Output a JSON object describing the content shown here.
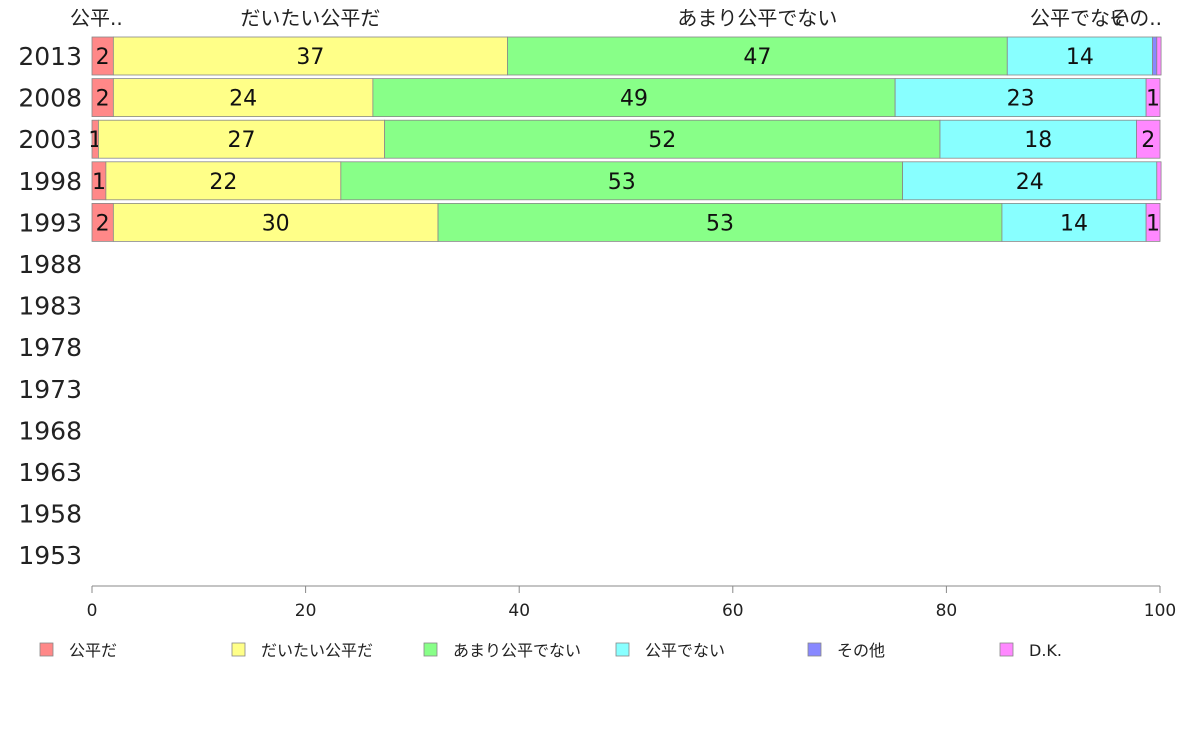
{
  "chart_data": {
    "type": "bar",
    "orientation": "horizontal",
    "stacked": true,
    "categories": [
      "2013",
      "2008",
      "2003",
      "1998",
      "1993",
      "1988",
      "1983",
      "1978",
      "1973",
      "1968",
      "1963",
      "1958",
      "1953"
    ],
    "series": [
      {
        "name": "公平だ",
        "color": "#FF8888",
        "values": [
          2,
          2,
          0.6,
          1.3,
          2,
          null,
          null,
          null,
          null,
          null,
          null,
          null,
          null
        ],
        "labels": [
          "2",
          "2",
          "1",
          "1",
          "2",
          "",
          "",
          "",
          "",
          "",
          "",
          "",
          ""
        ]
      },
      {
        "name": "だいたい公平だ",
        "color": "#FFFF88",
        "values": [
          36.9,
          24.3,
          26.8,
          22,
          30.4,
          null,
          null,
          null,
          null,
          null,
          null,
          null,
          null
        ],
        "labels": [
          "37",
          "24",
          "27",
          "22",
          "30",
          "",
          "",
          "",
          "",
          "",
          "",
          "",
          ""
        ]
      },
      {
        "name": "あまり公平でない",
        "color": "#88FF88",
        "values": [
          46.8,
          48.9,
          52,
          52.6,
          52.8,
          null,
          null,
          null,
          null,
          null,
          null,
          null,
          null
        ],
        "labels": [
          "47",
          "49",
          "52",
          "53",
          "53",
          "",
          "",
          "",
          "",
          "",
          "",
          "",
          ""
        ]
      },
      {
        "name": "公平でない",
        "color": "#88FFFF",
        "values": [
          13.6,
          23.5,
          18.4,
          23.8,
          13.5,
          null,
          null,
          null,
          null,
          null,
          null,
          null,
          null
        ],
        "labels": [
          "14",
          "23",
          "18",
          "24",
          "14",
          "",
          "",
          "",
          "",
          "",
          "",
          "",
          ""
        ]
      },
      {
        "name": "その他",
        "color": "#8888FF",
        "values": [
          0.4,
          0,
          0,
          0,
          0,
          null,
          null,
          null,
          null,
          null,
          null,
          null,
          null
        ],
        "labels": [
          "",
          "",
          "",
          "",
          "",
          "",
          "",
          "",
          "",
          "",
          "",
          "",
          ""
        ]
      },
      {
        "name": "D.K.",
        "color": "#FF88FF",
        "values": [
          0.4,
          1.3,
          2.2,
          0.4,
          1.3,
          null,
          null,
          null,
          null,
          null,
          null,
          null,
          null
        ],
        "labels": [
          "",
          "1",
          "2",
          "",
          "1",
          "",
          "",
          "",
          "",
          "",
          "",
          "",
          ""
        ]
      }
    ],
    "top_labels": [
      "公平..",
      "だいたい公平だ",
      "あまり公平でない",
      "公平でない",
      "その.."
    ],
    "xlim": [
      0,
      100
    ],
    "x_ticks": [
      "0",
      "20",
      "40",
      "60",
      "80",
      "100"
    ],
    "legend_position": "bottom",
    "grid": false
  }
}
